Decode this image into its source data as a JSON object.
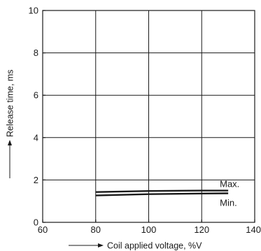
{
  "chart_data": {
    "type": "line",
    "xlabel": "Coil applied voltage, %V",
    "ylabel": "Release time, ms",
    "xlim": [
      60,
      140
    ],
    "ylim": [
      0,
      10
    ],
    "x_ticks": [
      "60",
      "80",
      "100",
      "120",
      "140"
    ],
    "y_ticks": [
      "0",
      "2",
      "4",
      "6",
      "8",
      "10"
    ],
    "grid": true,
    "series": [
      {
        "name": "Max.",
        "x": [
          80,
          100,
          120,
          130
        ],
        "y": [
          1.43,
          1.48,
          1.5,
          1.5
        ]
      },
      {
        "name": "Min.",
        "x": [
          80,
          100,
          120,
          130
        ],
        "y": [
          1.27,
          1.33,
          1.36,
          1.37
        ]
      }
    ],
    "colors": {
      "line": "#1a1a1a",
      "axis": "#1a1a1a",
      "grid": "#1a1a1a"
    }
  }
}
